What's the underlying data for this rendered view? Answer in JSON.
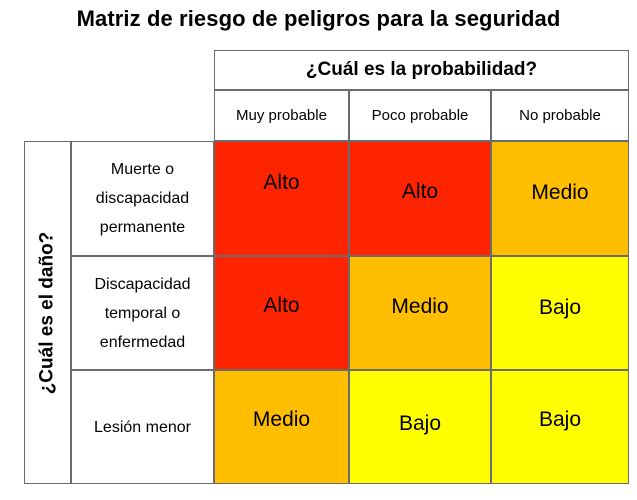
{
  "title": "Matriz de riesgo de peligros para la seguridad",
  "probability": {
    "title": "¿Cuál es la probabilidad?",
    "columns": [
      "Muy probable",
      "Poco probable",
      "No probable"
    ]
  },
  "harm": {
    "title": "¿Cuál es el daño?",
    "rows": [
      "Muerte o discapacidad permanente",
      "Discapacidad temporal o enfermedad",
      "Lesión menor"
    ]
  },
  "levels": {
    "high": "Alto",
    "medium": "Medio",
    "low": "Bajo"
  },
  "colors": {
    "high": "#ff2400",
    "medium": "#ffbe00",
    "low": "#ffff00",
    "border": "#6b6b6b"
  },
  "matrix": [
    [
      "high",
      "high",
      "medium"
    ],
    [
      "high",
      "medium",
      "low"
    ],
    [
      "medium",
      "low",
      "low"
    ]
  ]
}
